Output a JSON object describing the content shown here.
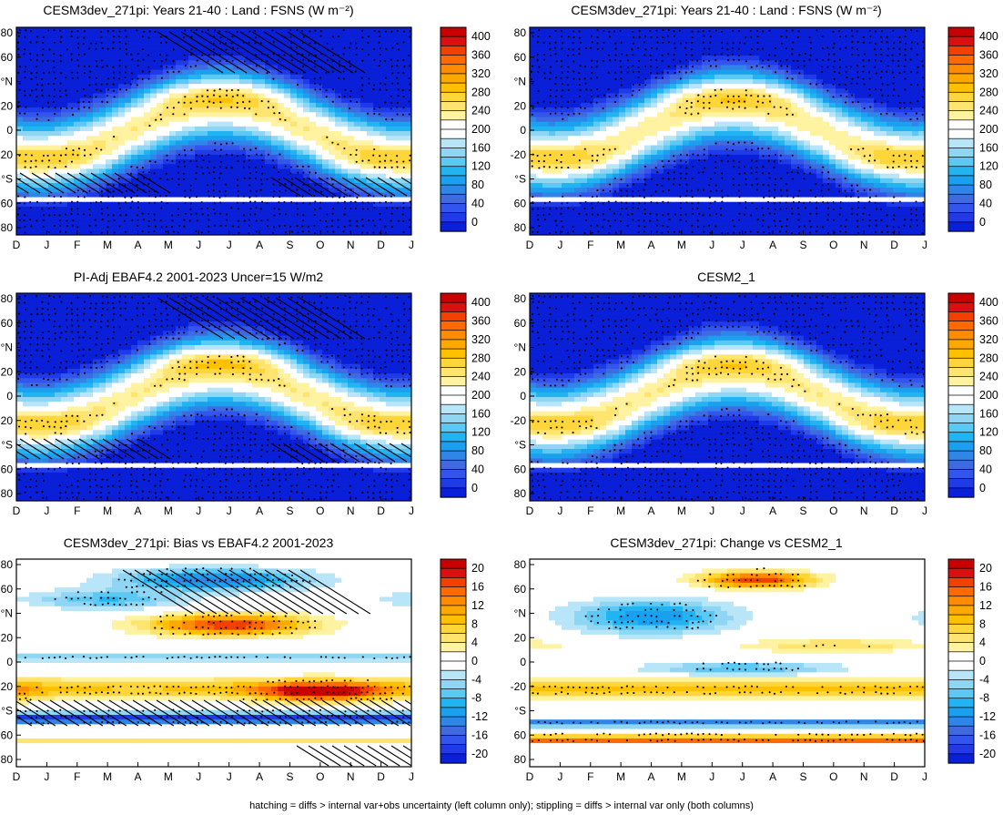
{
  "footnote": "hatching = diffs > internal var+obs uncertainty (left column only); stippling = diffs > internal var only (both columns)",
  "chart_data": [
    {
      "type": "heatmap",
      "title": "CESM3dev_271pi: Years 21-40 : Land : FSNS (W m⁻²)",
      "xlabel": "",
      "ylabel": "",
      "x_ticks": [
        "D",
        "J",
        "F",
        "M",
        "A",
        "M",
        "J",
        "J",
        "A",
        "S",
        "O",
        "N",
        "D",
        "J"
      ],
      "y_ticks": [
        "80",
        "60",
        "°N",
        "20",
        "0",
        "-20",
        "°S",
        "60",
        "80"
      ],
      "ylim": [
        -90,
        90
      ],
      "colorbar_ticks": [
        "400",
        "360",
        "320",
        "280",
        "240",
        "200",
        "160",
        "120",
        "80",
        "40",
        "0"
      ],
      "colorbar_range": [
        -20,
        420
      ],
      "kind": "abs",
      "hatching": true,
      "stippling": true
    },
    {
      "type": "heatmap",
      "title": "CESM3dev_271pi: Years 21-40 : Land : FSNS (W m⁻²)",
      "xlabel": "",
      "ylabel": "",
      "x_ticks": [
        "D",
        "J",
        "F",
        "M",
        "A",
        "M",
        "J",
        "J",
        "A",
        "S",
        "O",
        "N",
        "D",
        "J"
      ],
      "y_ticks": [
        "80",
        "60",
        "°N",
        "20",
        "0",
        "-20",
        "°S",
        "60",
        "80"
      ],
      "ylim": [
        -90,
        90
      ],
      "colorbar_ticks": [
        "400",
        "360",
        "320",
        "280",
        "240",
        "200",
        "160",
        "120",
        "80",
        "40",
        "0"
      ],
      "colorbar_range": [
        -20,
        420
      ],
      "kind": "abs",
      "hatching": false,
      "stippling": true
    },
    {
      "type": "heatmap",
      "title": "PI-Adj EBAF4.2 2001-2023 Uncer=15 W/m2",
      "xlabel": "",
      "ylabel": "",
      "x_ticks": [
        "D",
        "J",
        "F",
        "M",
        "A",
        "M",
        "J",
        "J",
        "A",
        "S",
        "O",
        "N",
        "D",
        "J"
      ],
      "y_ticks": [
        "80",
        "60",
        "°N",
        "20",
        "0",
        "-20",
        "°S",
        "60",
        "80"
      ],
      "ylim": [
        -90,
        90
      ],
      "colorbar_ticks": [
        "400",
        "360",
        "320",
        "280",
        "240",
        "200",
        "160",
        "120",
        "80",
        "40",
        "0"
      ],
      "colorbar_range": [
        -20,
        420
      ],
      "kind": "abs",
      "hatching": true,
      "stippling": true
    },
    {
      "type": "heatmap",
      "title": "CESM2_1",
      "xlabel": "",
      "ylabel": "",
      "x_ticks": [
        "D",
        "J",
        "F",
        "M",
        "A",
        "M",
        "J",
        "J",
        "A",
        "S",
        "O",
        "N",
        "D",
        "J"
      ],
      "y_ticks": [
        "80",
        "60",
        "°N",
        "20",
        "0",
        "-20",
        "°S",
        "60",
        "80"
      ],
      "ylim": [
        -90,
        90
      ],
      "colorbar_ticks": [
        "400",
        "360",
        "320",
        "280",
        "240",
        "200",
        "160",
        "120",
        "80",
        "40",
        "0"
      ],
      "colorbar_range": [
        -20,
        420
      ],
      "kind": "abs",
      "hatching": false,
      "stippling": true
    },
    {
      "type": "heatmap",
      "title": "CESM3dev_271pi: Bias vs EBAF4.2 2001-2023",
      "xlabel": "",
      "ylabel": "",
      "x_ticks": [
        "D",
        "J",
        "F",
        "M",
        "A",
        "M",
        "J",
        "J",
        "A",
        "S",
        "O",
        "N",
        "D",
        "J"
      ],
      "y_ticks": [
        "80",
        "60",
        "°N",
        "20",
        "0",
        "-20",
        "°S",
        "60",
        "80"
      ],
      "ylim": [
        -90,
        90
      ],
      "colorbar_ticks": [
        "20",
        "16",
        "12",
        "8",
        "4",
        "0",
        "-4",
        "-8",
        "-12",
        "-16",
        "-20"
      ],
      "colorbar_range": [
        -22,
        22
      ],
      "kind": "bias",
      "hatching": true,
      "stippling": true
    },
    {
      "type": "heatmap",
      "title": "CESM3dev_271pi: Change vs CESM2_1",
      "xlabel": "",
      "ylabel": "",
      "x_ticks": [
        "D",
        "J",
        "F",
        "M",
        "A",
        "M",
        "J",
        "J",
        "A",
        "S",
        "O",
        "N",
        "D",
        "J"
      ],
      "y_ticks": [
        "80",
        "60",
        "°N",
        "20",
        "0",
        "-20",
        "°S",
        "60",
        "80"
      ],
      "ylim": [
        -90,
        90
      ],
      "colorbar_ticks": [
        "20",
        "16",
        "12",
        "8",
        "4",
        "0",
        "-4",
        "-8",
        "-12",
        "-16",
        "-20"
      ],
      "colorbar_range": [
        -22,
        22
      ],
      "kind": "change",
      "hatching": false,
      "stippling": true
    }
  ],
  "colors": {
    "scale": [
      "#0a1fd8",
      "#1f3be8",
      "#3355ee",
      "#3f6ae0",
      "#2f86e8",
      "#1aa0ee",
      "#22b4f2",
      "#5cc8f4",
      "#8ed6f4",
      "#b8e6f8",
      "#ffffff",
      "#ffffff",
      "#fff2a0",
      "#ffe470",
      "#ffd63a",
      "#ffc000",
      "#ffa800",
      "#ff8c00",
      "#ff6a00",
      "#f24000",
      "#d81010",
      "#c80000"
    ],
    "missing": "#ffffff",
    "axis": "#000000"
  }
}
